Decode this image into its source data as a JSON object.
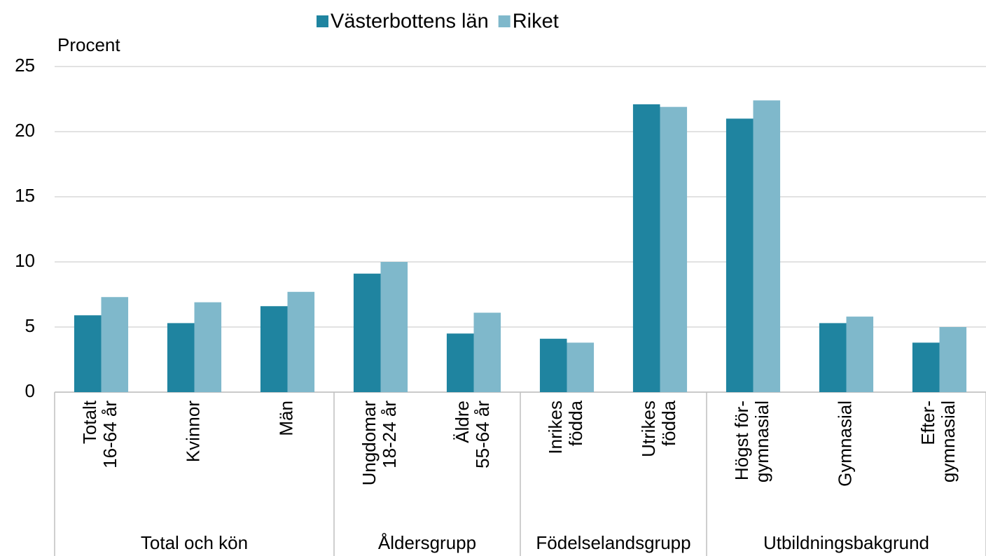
{
  "chart_data": {
    "type": "bar",
    "y_label": "Procent",
    "groups": [
      {
        "name": "Total och kön",
        "categories": [
          [
            "Totalt",
            "16-64 år"
          ],
          [
            "Kvinnor"
          ],
          [
            "Män"
          ]
        ]
      },
      {
        "name": "Åldersgrupp",
        "categories": [
          [
            "Ungdomar",
            "18-24 år"
          ],
          [
            "Äldre",
            "55-64 år"
          ]
        ]
      },
      {
        "name": "Födelselandsgrupp",
        "categories": [
          [
            "Inrikes",
            "födda"
          ],
          [
            "Utrikes",
            "födda"
          ]
        ]
      },
      {
        "name": "Utbildningsbakgrund",
        "categories": [
          [
            "Högst för-",
            "gymnasial"
          ],
          [
            "Gymnasial"
          ],
          [
            "Efter-",
            "gymnasial"
          ]
        ]
      }
    ],
    "series": [
      {
        "name": "Västerbottens län",
        "color": "#1f84a0",
        "values": [
          5.9,
          5.3,
          6.6,
          9.1,
          4.5,
          4.1,
          22.1,
          21.0,
          5.3,
          3.8
        ]
      },
      {
        "name": "Riket",
        "color": "#7fb8cb",
        "values": [
          7.3,
          6.9,
          7.7,
          10.0,
          6.1,
          3.8,
          21.9,
          22.4,
          5.8,
          5.0
        ]
      }
    ],
    "ylim": [
      0,
      25
    ],
    "yticks": [
      0,
      5,
      10,
      15,
      20,
      25
    ],
    "grid": true,
    "legend": "top"
  }
}
